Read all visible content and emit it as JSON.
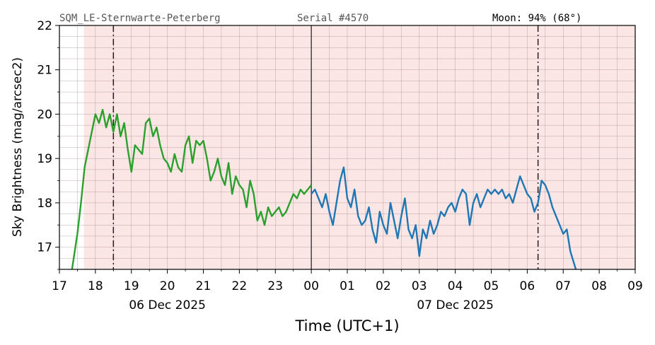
{
  "header": {
    "station": "SQM_LE-Sternwarte-Peterberg",
    "serial": "Serial #4570",
    "moon": "Moon: 94% (68°)"
  },
  "chart_data": {
    "type": "line",
    "title": "",
    "xlabel": "Time (UTC+1)",
    "ylabel": "Sky Brightness (mag/arcsec2)",
    "x_unit": "hours since 06 Dec 2025 17:00 (UTC+1)",
    "xlim": [
      0,
      16
    ],
    "ylim": [
      16.5,
      22
    ],
    "x_ticks": [
      {
        "h": 0,
        "label": "17"
      },
      {
        "h": 1,
        "label": "18"
      },
      {
        "h": 2,
        "label": "19"
      },
      {
        "h": 3,
        "label": "20"
      },
      {
        "h": 4,
        "label": "21"
      },
      {
        "h": 5,
        "label": "22"
      },
      {
        "h": 6,
        "label": "23"
      },
      {
        "h": 7,
        "label": "00"
      },
      {
        "h": 8,
        "label": "01"
      },
      {
        "h": 9,
        "label": "02"
      },
      {
        "h": 10,
        "label": "03"
      },
      {
        "h": 11,
        "label": "04"
      },
      {
        "h": 12,
        "label": "05"
      },
      {
        "h": 13,
        "label": "06"
      },
      {
        "h": 14,
        "label": "07"
      },
      {
        "h": 15,
        "label": "08"
      },
      {
        "h": 16,
        "label": "09"
      }
    ],
    "y_ticks": [
      17,
      18,
      19,
      20,
      21,
      22
    ],
    "date_labels": [
      {
        "h": 3,
        "label": "06 Dec 2025"
      },
      {
        "h": 11,
        "label": "07 Dec 2025"
      }
    ],
    "night_shading": {
      "start": 0.68,
      "end": 16,
      "color": "#fbe6e6"
    },
    "twilight_lines": [
      1.5,
      13.3
    ],
    "midnight_line": 7,
    "grid": true,
    "series": [
      {
        "color": "#2ca02c",
        "x": [
          0.35,
          0.5,
          0.6,
          0.7,
          0.8,
          0.9,
          1.0,
          1.1,
          1.2,
          1.3,
          1.4,
          1.5,
          1.6,
          1.7,
          1.8,
          1.9,
          2.0,
          2.1,
          2.2,
          2.3,
          2.4,
          2.5,
          2.6,
          2.7,
          2.8,
          2.9,
          3.0,
          3.1,
          3.2,
          3.3,
          3.4,
          3.5,
          3.6,
          3.7,
          3.8,
          3.9,
          4.0,
          4.1,
          4.2,
          4.3,
          4.4,
          4.5,
          4.6,
          4.7,
          4.8,
          4.9,
          5.0,
          5.1,
          5.2,
          5.3,
          5.4,
          5.5,
          5.6,
          5.7,
          5.8,
          5.9,
          6.0,
          6.1,
          6.2,
          6.3,
          6.4,
          6.5,
          6.6,
          6.7,
          6.8,
          6.9,
          7.0
        ],
        "y": [
          16.5,
          17.3,
          18.0,
          18.8,
          19.2,
          19.6,
          20.0,
          19.8,
          20.1,
          19.7,
          20.0,
          19.6,
          20.0,
          19.5,
          19.8,
          19.2,
          18.7,
          19.3,
          19.2,
          19.1,
          19.8,
          19.9,
          19.5,
          19.7,
          19.3,
          19.0,
          18.9,
          18.7,
          19.1,
          18.8,
          18.7,
          19.3,
          19.5,
          18.9,
          19.4,
          19.3,
          19.4,
          19.0,
          18.5,
          18.7,
          19.0,
          18.6,
          18.4,
          18.9,
          18.2,
          18.6,
          18.4,
          18.3,
          17.9,
          18.5,
          18.2,
          17.6,
          17.8,
          17.5,
          17.9,
          17.7,
          17.8,
          17.9,
          17.7,
          17.8,
          18.0,
          18.2,
          18.1,
          18.3,
          18.2,
          18.3,
          18.4
        ]
      },
      {
        "color": "#1f77b4",
        "x": [
          7.0,
          7.1,
          7.2,
          7.3,
          7.4,
          7.5,
          7.6,
          7.7,
          7.8,
          7.9,
          8.0,
          8.1,
          8.2,
          8.3,
          8.4,
          8.5,
          8.6,
          8.7,
          8.8,
          8.9,
          9.0,
          9.1,
          9.2,
          9.3,
          9.4,
          9.5,
          9.6,
          9.7,
          9.8,
          9.9,
          10.0,
          10.1,
          10.2,
          10.3,
          10.4,
          10.5,
          10.6,
          10.7,
          10.8,
          10.9,
          11.0,
          11.1,
          11.2,
          11.3,
          11.4,
          11.5,
          11.6,
          11.7,
          11.8,
          11.9,
          12.0,
          12.1,
          12.2,
          12.3,
          12.4,
          12.5,
          12.6,
          12.7,
          12.8,
          12.9,
          13.0,
          13.1,
          13.2,
          13.3,
          13.4,
          13.5,
          13.6,
          13.7,
          13.8,
          13.9,
          14.0,
          14.1,
          14.2,
          14.35
        ],
        "y": [
          18.2,
          18.3,
          18.1,
          17.9,
          18.2,
          17.8,
          17.5,
          18.0,
          18.5,
          18.8,
          18.1,
          17.9,
          18.3,
          17.7,
          17.5,
          17.6,
          17.9,
          17.4,
          17.1,
          17.8,
          17.5,
          17.3,
          18.0,
          17.6,
          17.2,
          17.7,
          18.1,
          17.4,
          17.2,
          17.5,
          16.8,
          17.4,
          17.2,
          17.6,
          17.3,
          17.5,
          17.8,
          17.7,
          17.9,
          18.0,
          17.8,
          18.1,
          18.3,
          18.2,
          17.5,
          18.0,
          18.2,
          17.9,
          18.1,
          18.3,
          18.2,
          18.3,
          18.2,
          18.3,
          18.1,
          18.2,
          18.0,
          18.3,
          18.6,
          18.4,
          18.2,
          18.1,
          17.8,
          18.0,
          18.5,
          18.4,
          18.2,
          17.9,
          17.7,
          17.5,
          17.3,
          17.4,
          16.9,
          16.5
        ]
      }
    ]
  }
}
